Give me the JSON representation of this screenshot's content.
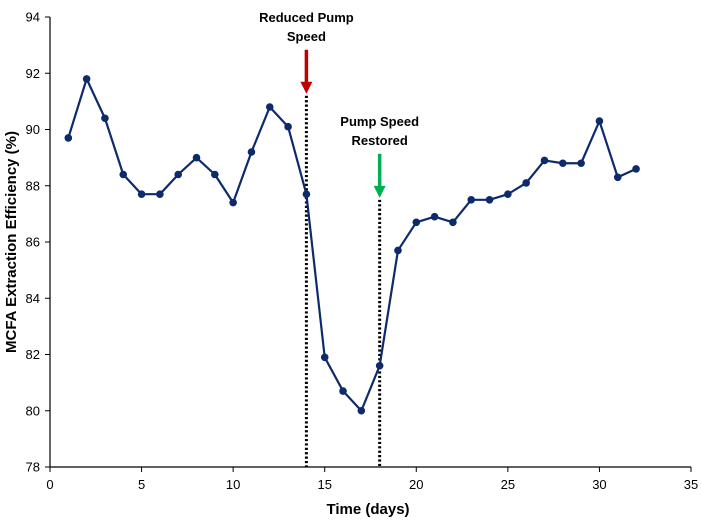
{
  "chart_data": {
    "type": "line",
    "title": "",
    "xlabel": "Time (days)",
    "ylabel": "MCFA Extraction Efficiency (%)",
    "xlim": [
      0,
      35
    ],
    "ylim": [
      78,
      94
    ],
    "xticks": [
      0,
      5,
      10,
      15,
      20,
      25,
      30,
      35
    ],
    "yticks": [
      78,
      80,
      82,
      84,
      86,
      88,
      90,
      92,
      94
    ],
    "grid": false,
    "legend": "none",
    "series_color": "#0d2a6b",
    "series": [
      {
        "name": "MCFA Extraction Efficiency",
        "x": [
          1,
          2,
          3,
          4,
          5,
          6,
          7,
          8,
          9,
          10,
          11,
          12,
          13,
          14,
          15,
          16,
          17,
          18,
          19,
          20,
          21,
          22,
          23,
          24,
          25,
          26,
          27,
          28,
          29,
          30,
          31,
          32
        ],
        "y": [
          89.7,
          91.8,
          90.4,
          88.4,
          87.7,
          87.7,
          88.4,
          89.0,
          88.4,
          87.4,
          89.2,
          90.8,
          90.1,
          87.7,
          81.9,
          80.7,
          80.0,
          81.6,
          85.7,
          86.7,
          86.9,
          86.7,
          87.5,
          87.5,
          87.7,
          88.1,
          88.9,
          88.8,
          88.8,
          90.3,
          88.3,
          88.6
        ]
      }
    ],
    "annotations": [
      {
        "name": "reduced-pump-speed",
        "lines": [
          "Reduced Pump",
          "Speed"
        ],
        "x": 14,
        "line_top_y": 91.2,
        "arrow_color": "#c00000"
      },
      {
        "name": "pump-speed-restored",
        "lines": [
          "Pump Speed",
          "Restored"
        ],
        "x": 18,
        "line_top_y": 87.5,
        "arrow_color": "#00b050"
      }
    ]
  }
}
